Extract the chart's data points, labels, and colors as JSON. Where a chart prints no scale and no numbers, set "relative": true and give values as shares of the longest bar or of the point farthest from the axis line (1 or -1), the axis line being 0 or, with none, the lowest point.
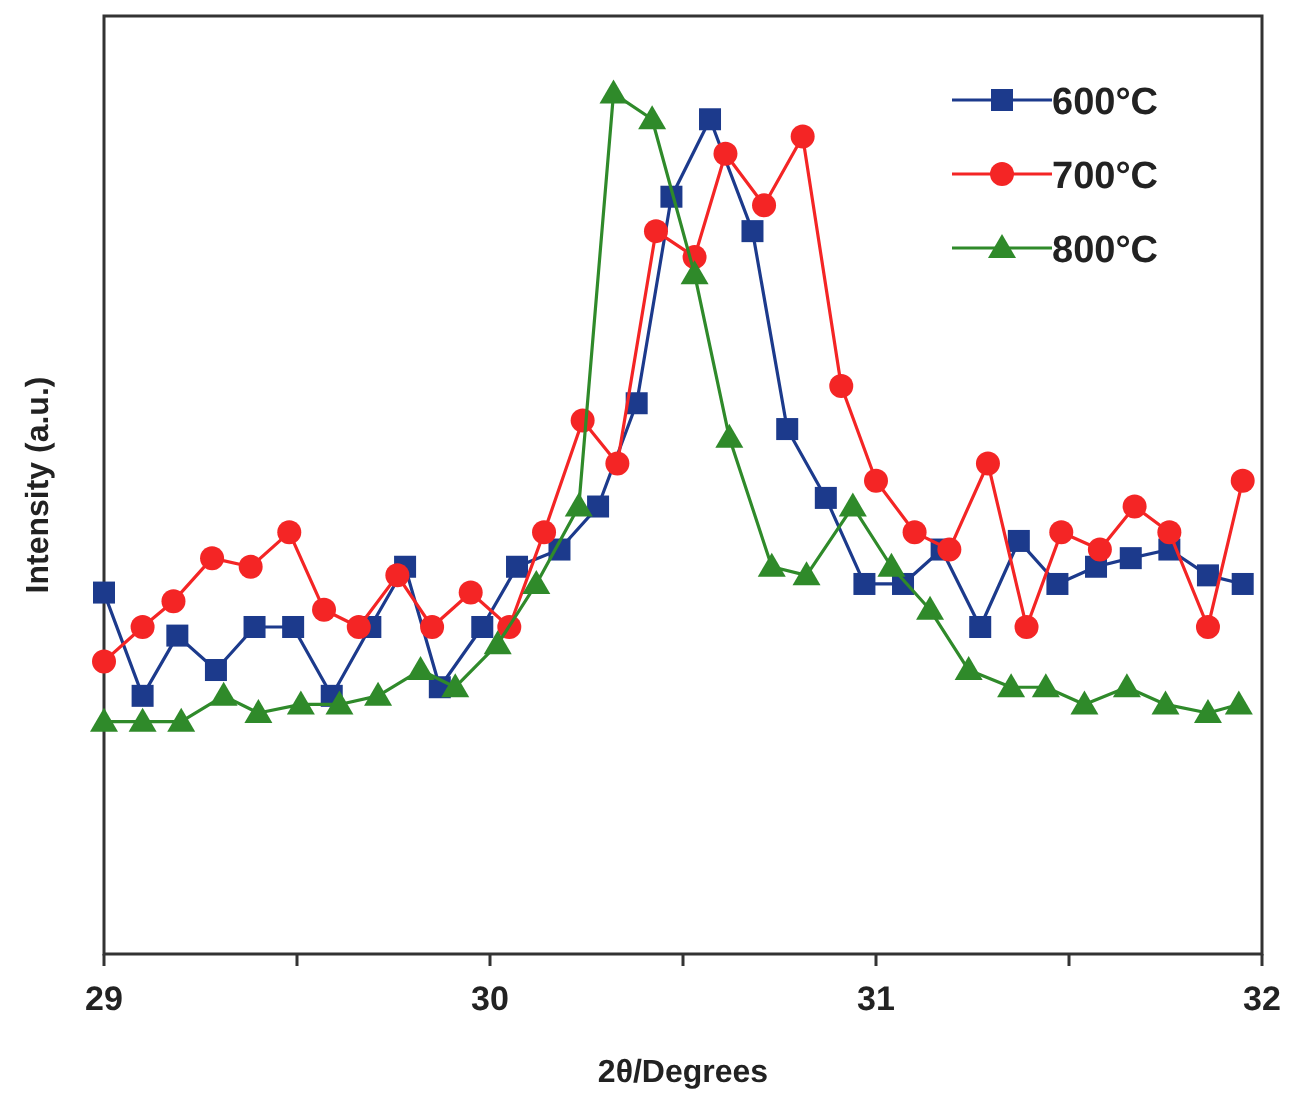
{
  "chart_data": {
    "type": "line",
    "xlabel": "2θ/Degrees",
    "ylabel": "Intensity (a.u.)",
    "relative": true,
    "xlim": [
      29,
      32
    ],
    "xticks": [
      29,
      {
        "value": 29.5,
        "label": null
      },
      30,
      {
        "value": 30.5,
        "label": null
      },
      31,
      {
        "value": 31.5,
        "label": null
      },
      32
    ],
    "grid": false,
    "legend": "top right",
    "line_style": "solid",
    "series": [
      {
        "name": "600°C",
        "color": "#1c3a8c",
        "marker": "square",
        "x": [
          29.0,
          29.1,
          29.19,
          29.29,
          29.39,
          29.49,
          29.59,
          29.69,
          29.78,
          29.87,
          29.98,
          30.07,
          30.18,
          30.28,
          30.38,
          30.47,
          30.57,
          30.68,
          30.77,
          30.87,
          30.97,
          31.07,
          31.17,
          31.27,
          31.37,
          31.47,
          31.57,
          31.66,
          31.76,
          31.86,
          31.95
        ],
        "values": [
          0.42,
          0.3,
          0.37,
          0.33,
          0.38,
          0.38,
          0.3,
          0.38,
          0.45,
          0.31,
          0.38,
          0.45,
          0.47,
          0.52,
          0.64,
          0.88,
          0.97,
          0.84,
          0.61,
          0.53,
          0.43,
          0.43,
          0.47,
          0.38,
          0.48,
          0.43,
          0.45,
          0.46,
          0.47,
          0.44,
          0.43
        ]
      },
      {
        "name": "700°C",
        "color": "#f42525",
        "marker": "circle",
        "x": [
          29.0,
          29.1,
          29.18,
          29.28,
          29.38,
          29.48,
          29.57,
          29.66,
          29.76,
          29.85,
          29.95,
          30.05,
          30.14,
          30.24,
          30.33,
          30.43,
          30.53,
          30.61,
          30.71,
          30.81,
          30.91,
          31.0,
          31.1,
          31.19,
          31.29,
          31.39,
          31.48,
          31.58,
          31.67,
          31.76,
          31.86,
          31.95
        ],
        "values": [
          0.34,
          0.38,
          0.41,
          0.46,
          0.45,
          0.49,
          0.4,
          0.38,
          0.44,
          0.38,
          0.42,
          0.38,
          0.49,
          0.62,
          0.57,
          0.84,
          0.81,
          0.93,
          0.87,
          0.95,
          0.66,
          0.55,
          0.49,
          0.47,
          0.57,
          0.38,
          0.49,
          0.47,
          0.52,
          0.49,
          0.38,
          0.55
        ]
      },
      {
        "name": "800°C",
        "color": "#2f8a2a",
        "marker": "triangle",
        "x": [
          29.0,
          29.1,
          29.2,
          29.31,
          29.4,
          29.51,
          29.61,
          29.71,
          29.82,
          29.91,
          30.02,
          30.12,
          30.23,
          30.32,
          30.42,
          30.53,
          30.62,
          30.73,
          30.82,
          30.94,
          31.04,
          31.14,
          31.24,
          31.35,
          31.44,
          31.54,
          31.65,
          31.75,
          31.86,
          31.94
        ],
        "values": [
          0.27,
          0.27,
          0.27,
          0.3,
          0.28,
          0.29,
          0.29,
          0.3,
          0.33,
          0.31,
          0.36,
          0.43,
          0.52,
          1,
          0.97,
          0.79,
          0.6,
          0.45,
          0.44,
          0.52,
          0.45,
          0.4,
          0.33,
          0.31,
          0.31,
          0.29,
          0.31,
          0.29,
          0.28,
          0.29
        ]
      }
    ]
  }
}
